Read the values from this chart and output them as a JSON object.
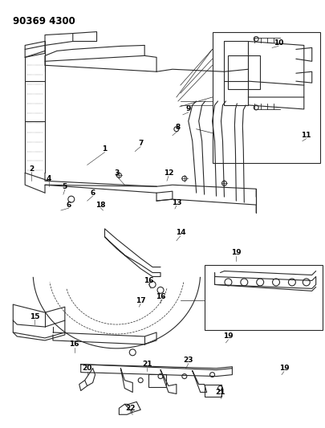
{
  "title": "90369 4300",
  "bg_color": "#ffffff",
  "line_color": "#2a2a2a",
  "label_color": "#000000",
  "label_fontsize": 6.5,
  "fig_width": 4.06,
  "fig_height": 5.33,
  "dpi": 100
}
